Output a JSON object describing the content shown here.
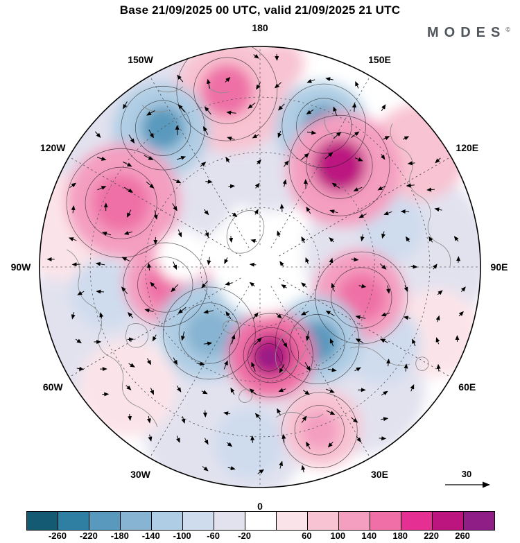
{
  "header": {
    "title": "Base 21/09/2025 00 UTC, valid 21/09/2025 21 UTC",
    "logo_text": "MODES",
    "logo_mark": "©"
  },
  "map": {
    "lon_labels": [
      "180",
      "150W",
      "150E",
      "120W",
      "120E",
      "90W",
      "90E",
      "60W",
      "60E",
      "30W",
      "30E",
      "0"
    ]
  },
  "reference_vector": {
    "label": "30"
  },
  "chart_data": {
    "type": "heatmap",
    "title": "Base 21/09/2025 00 UTC, valid 21/09/2025 21 UTC",
    "projection": "north-polar-stereographic",
    "pole": "North Pole at center, 0 longitude at bottom, 180 at top",
    "longitude_labels": [
      "180",
      "150W",
      "150E",
      "120W",
      "120E",
      "90W",
      "90E",
      "60W",
      "60E",
      "30W",
      "30E",
      "0"
    ],
    "overlay": "wind arrows and dashed graticule every 30 degrees",
    "reference_vector_value": 30,
    "colorbar": {
      "levels": [
        -260,
        -220,
        -180,
        -140,
        -100,
        -60,
        -20,
        20,
        60,
        100,
        140,
        180,
        220,
        260
      ],
      "tick_labels": [
        "-260",
        "-220",
        "-180",
        "-140",
        "-100",
        "-60",
        "-20",
        "",
        "60",
        "100",
        "140",
        "180",
        "220",
        "260"
      ],
      "colors": [
        "#135a72",
        "#2f7fa3",
        "#5899bd",
        "#86b4d2",
        "#afcde4",
        "#cfdcee",
        "#e2e2ef",
        "#ffffff",
        "#fbe4e9",
        "#f8c3d2",
        "#f49ec0",
        "#ef6fa6",
        "#e52f92",
        "#bc1580",
        "#8f1f87"
      ]
    },
    "anomaly_centers": [
      {
        "u": -0.52,
        "v": -0.52,
        "r": 0.48,
        "value": -40
      },
      {
        "u": 0.62,
        "v": -0.05,
        "r": 0.42,
        "value": -40
      },
      {
        "u": -0.15,
        "v": 0.72,
        "r": 0.38,
        "value": -40
      },
      {
        "u": -0.78,
        "v": 0.28,
        "r": 0.32,
        "value": -40
      },
      {
        "u": 0.45,
        "v": 0.55,
        "r": 0.3,
        "value": -40
      },
      {
        "u": 0.05,
        "v": -0.55,
        "r": 0.3,
        "value": -40
      },
      {
        "u": -0.88,
        "v": -0.18,
        "r": 0.24,
        "value": 40
      },
      {
        "u": 0.72,
        "v": -0.52,
        "r": 0.22,
        "value": 70
      },
      {
        "u": -0.6,
        "v": 0.55,
        "r": 0.22,
        "value": 50
      },
      {
        "u": 0.8,
        "v": 0.3,
        "r": 0.2,
        "value": 40
      },
      {
        "u": -0.7,
        "v": 0.12,
        "r": 0.16,
        "value": -80
      },
      {
        "u": 0.6,
        "v": -0.18,
        "r": 0.15,
        "value": -80
      },
      {
        "u": -0.05,
        "v": 0.8,
        "r": 0.16,
        "value": -70
      },
      {
        "u": 0.55,
        "v": 0.35,
        "r": 0.18,
        "value": -70
      },
      {
        "u": -0.13,
        "v": -0.78,
        "r": 0.26,
        "value": 80
      },
      {
        "u": -0.15,
        "v": -0.8,
        "r": 0.12,
        "value": 150
      },
      {
        "u": 0.1,
        "v": -0.92,
        "r": 0.1,
        "value": 70
      },
      {
        "u": -0.45,
        "v": -0.62,
        "r": 0.22,
        "value": -120
      },
      {
        "u": -0.44,
        "v": -0.63,
        "r": 0.1,
        "value": -200
      },
      {
        "u": 0.28,
        "v": -0.63,
        "r": 0.21,
        "value": -120
      },
      {
        "u": 0.29,
        "v": -0.64,
        "r": 0.1,
        "value": -200
      },
      {
        "u": 0.38,
        "v": -0.44,
        "r": 0.26,
        "value": 110
      },
      {
        "u": 0.36,
        "v": -0.46,
        "r": 0.12,
        "value": 230
      },
      {
        "u": -0.62,
        "v": -0.3,
        "r": 0.26,
        "value": 110
      },
      {
        "u": -0.63,
        "v": -0.29,
        "r": 0.13,
        "value": 175
      },
      {
        "u": -0.42,
        "v": 0.07,
        "r": 0.2,
        "value": 110
      },
      {
        "u": -0.43,
        "v": 0.08,
        "r": 0.1,
        "value": 170
      },
      {
        "u": 0.45,
        "v": 0.13,
        "r": 0.21,
        "value": 110
      },
      {
        "u": 0.46,
        "v": 0.14,
        "r": 0.11,
        "value": 175
      },
      {
        "u": -0.24,
        "v": 0.29,
        "r": 0.22,
        "value": -110
      },
      {
        "u": -0.23,
        "v": 0.3,
        "r": 0.11,
        "value": -170
      },
      {
        "u": 0.26,
        "v": 0.33,
        "r": 0.2,
        "value": -120
      },
      {
        "u": 0.26,
        "v": 0.34,
        "r": 0.1,
        "value": -200
      },
      {
        "u": 0.05,
        "v": 0.4,
        "r": 0.2,
        "value": 150
      },
      {
        "u": 0.05,
        "v": 0.4,
        "r": 0.1,
        "value": 240
      },
      {
        "u": 0.04,
        "v": 0.41,
        "r": 0.05,
        "value": 280
      },
      {
        "u": 0.28,
        "v": 0.73,
        "r": 0.18,
        "value": 80
      },
      {
        "u": 0.27,
        "v": 0.74,
        "r": 0.09,
        "value": 130
      },
      {
        "u": 0.0,
        "v": 0.02,
        "r": 0.2,
        "value": 0
      },
      {
        "u": -0.35,
        "v": -0.05,
        "r": 0.12,
        "value": 0
      }
    ]
  }
}
